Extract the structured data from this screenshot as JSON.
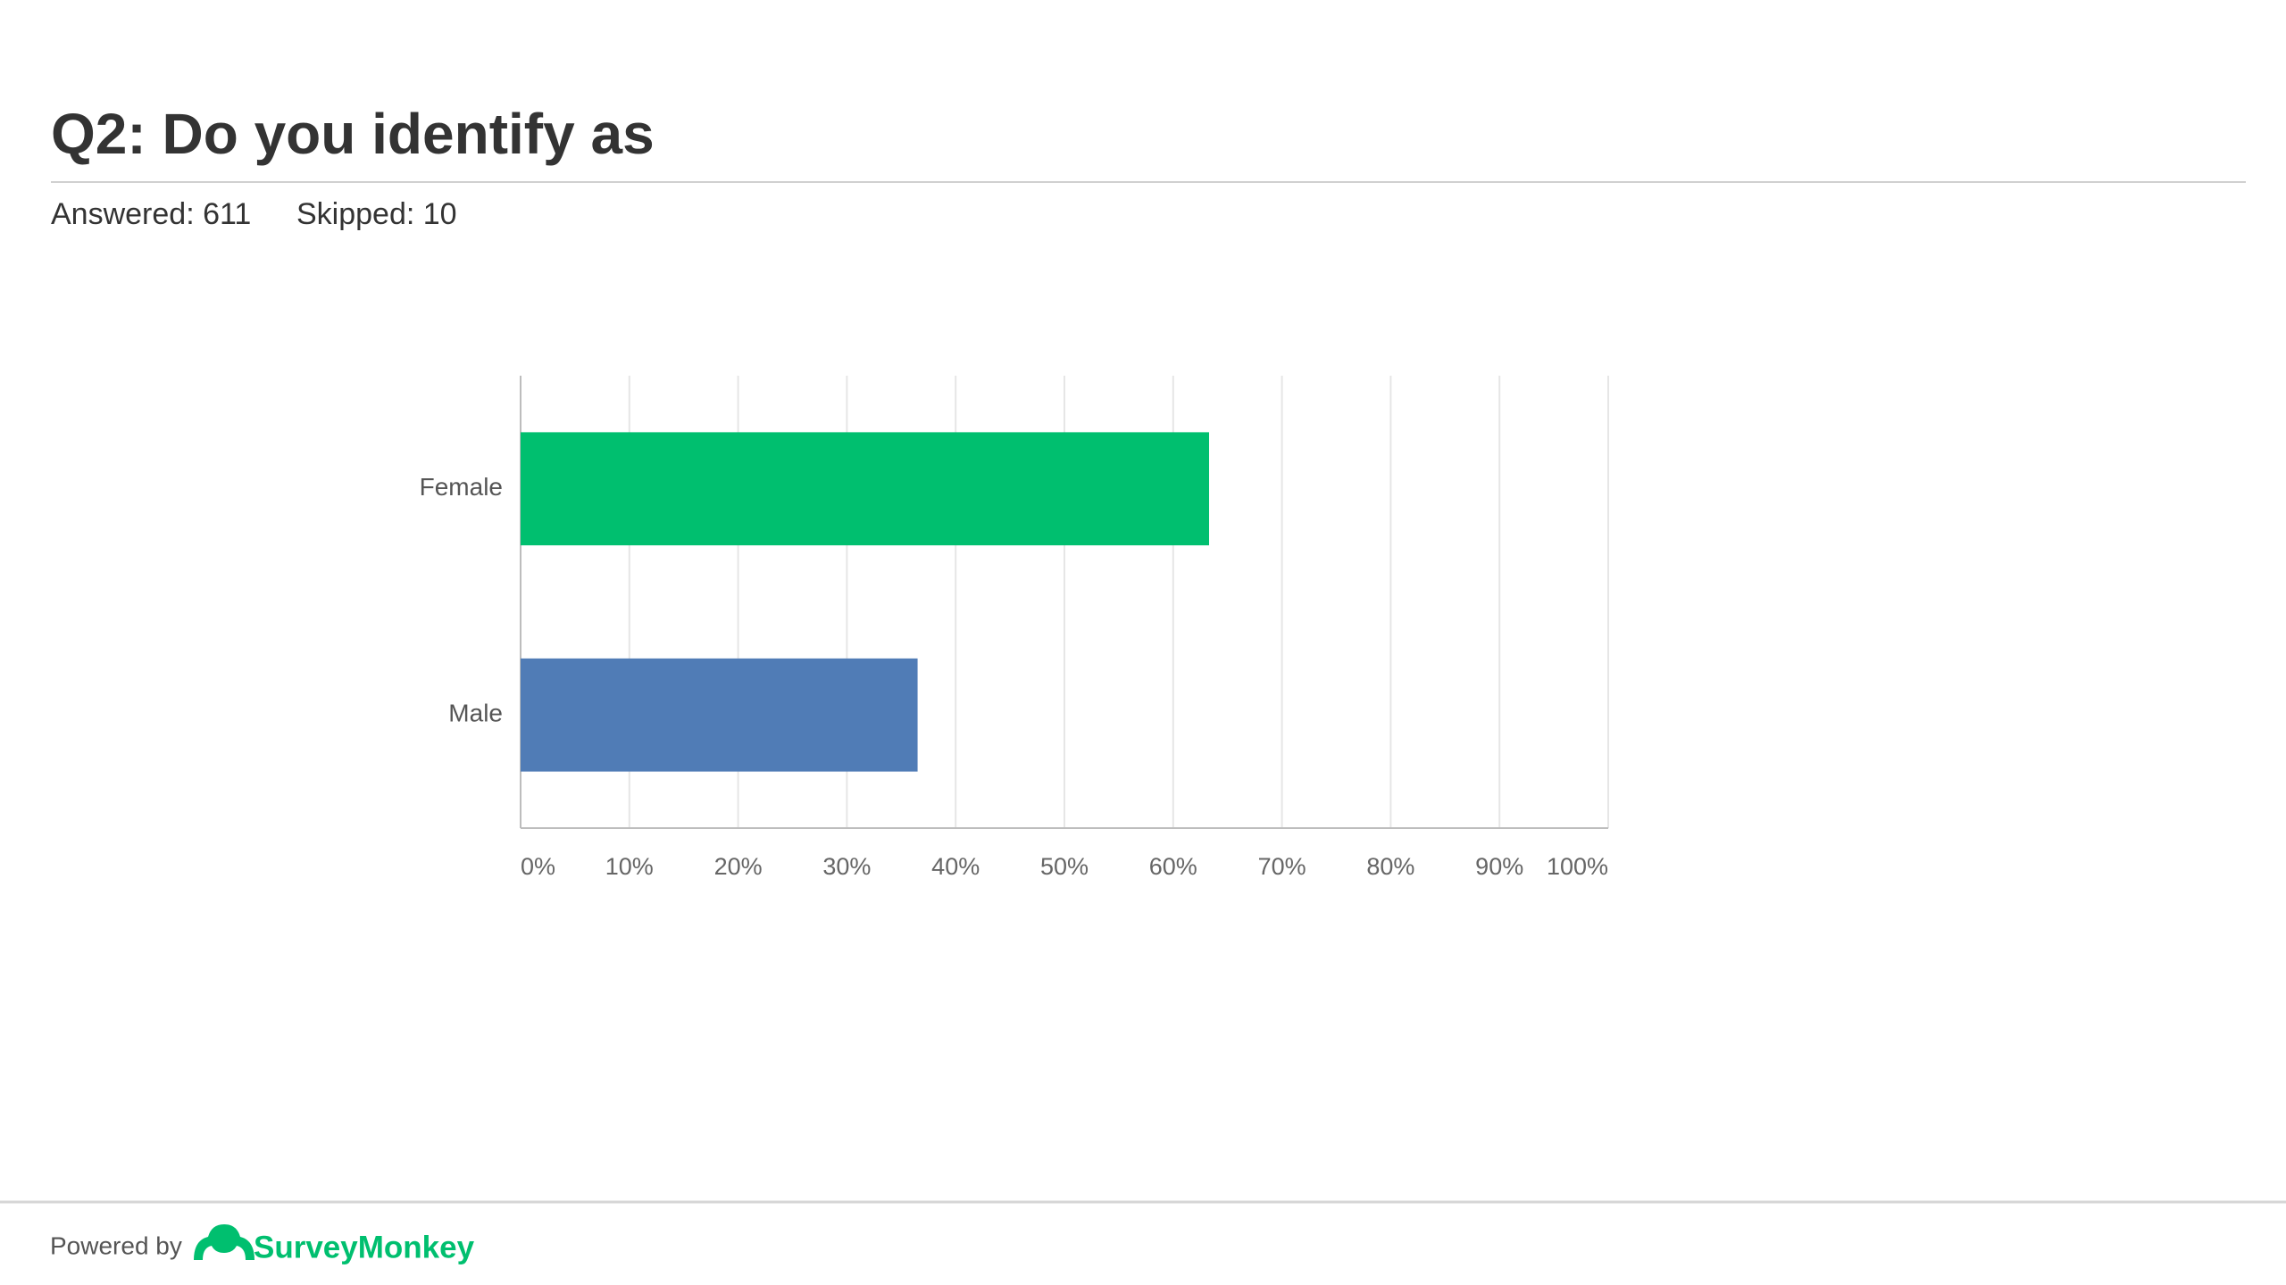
{
  "chart_data": {
    "type": "hbar",
    "title": "Q2: Do you identify as",
    "subtitle": [
      "Answered: 611",
      "Skipped: 10"
    ],
    "categories": [
      "Female",
      "Male"
    ],
    "values": [
      63.3,
      36.5
    ],
    "colors": [
      "#00bf6f",
      "#507cb6"
    ],
    "xlim": [
      0,
      100
    ],
    "xticks": [
      {
        "value": 0,
        "label": "0%"
      },
      {
        "value": 10,
        "label": "10%"
      },
      {
        "value": 20,
        "label": "20%"
      },
      {
        "value": 30,
        "label": "30%"
      },
      {
        "value": 40,
        "label": "40%"
      },
      {
        "value": 50,
        "label": "50%"
      },
      {
        "value": 60,
        "label": "60%"
      },
      {
        "value": 70,
        "label": "70%"
      },
      {
        "value": 80,
        "label": "80%"
      },
      {
        "value": 90,
        "label": "90%"
      },
      {
        "value": 100,
        "label": "100%"
      }
    ],
    "grid": true
  },
  "footer": {
    "powered_by": "Powered by",
    "brand": "SurveyMonkey"
  }
}
